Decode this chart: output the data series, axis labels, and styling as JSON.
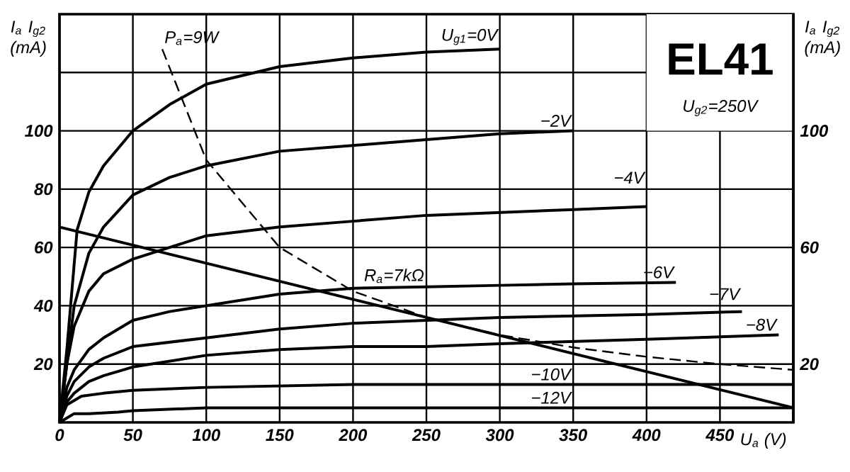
{
  "chart_data": {
    "type": "line",
    "title": "EL41",
    "subtitle": "U$_{g2}$=250V",
    "xlabel": "U$_{a}$ (V)",
    "ylabel": "I$_{a}$ I$_{g2}$ (mA)",
    "y2label": "I$_{a}$ I$_{g2}$ (mA)",
    "xlim": [
      0,
      500
    ],
    "ylim": [
      0,
      140
    ],
    "y2lim": [
      0,
      140
    ],
    "xticks": [
      0,
      50,
      100,
      150,
      200,
      250,
      300,
      350,
      400,
      450
    ],
    "yticks": [
      20,
      40,
      60,
      80,
      100,
      {
        "value": 120,
        "label": null
      }
    ],
    "y2ticks": [
      20,
      60,
      100
    ],
    "grid": true,
    "series": [
      {
        "color": "#000000",
        "line_style": "solid",
        "x": [
          0,
          5,
          12,
          20,
          30,
          50,
          75,
          100,
          150,
          200,
          250,
          300
        ],
        "values": [
          0,
          25,
          66,
          79,
          88,
          100,
          109,
          116,
          122,
          125,
          127,
          128
        ]
      },
      {
        "color": "#000000",
        "line_style": "solid",
        "x": [
          0,
          5,
          10,
          20,
          30,
          50,
          75,
          100,
          150,
          200,
          250,
          300,
          350
        ],
        "values": [
          0,
          20,
          40,
          58,
          67,
          78,
          84,
          88,
          93,
          95,
          97,
          99,
          100
        ]
      },
      {
        "color": "#000000",
        "line_style": "solid",
        "x": [
          0,
          5,
          10,
          20,
          30,
          50,
          75,
          100,
          150,
          200,
          250,
          300,
          350,
          400
        ],
        "values": [
          0,
          20,
          33,
          45,
          51,
          56,
          60,
          64,
          67,
          69,
          71,
          72,
          73,
          74
        ]
      },
      {
        "color": "#000000",
        "line_style": "solid",
        "x": [
          0,
          5,
          10,
          20,
          30,
          50,
          75,
          100,
          150,
          200,
          250,
          300,
          350,
          420
        ],
        "values": [
          0,
          12,
          18,
          25,
          29,
          35,
          38,
          40,
          44,
          46,
          46.5,
          47,
          47.5,
          48
        ]
      },
      {
        "color": "#000000",
        "line_style": "solid",
        "x": [
          0,
          5,
          10,
          20,
          30,
          50,
          100,
          150,
          200,
          250,
          300,
          400,
          465
        ],
        "values": [
          0,
          9,
          14,
          19,
          22,
          26,
          29,
          32,
          34,
          35,
          36,
          37,
          38
        ]
      },
      {
        "color": "#000000",
        "line_style": "solid",
        "x": [
          0,
          5,
          10,
          20,
          30,
          50,
          100,
          150,
          200,
          250,
          300,
          400,
          490
        ],
        "values": [
          0,
          7,
          10,
          14,
          16,
          19,
          23,
          25,
          26,
          26,
          27,
          28.5,
          30
        ]
      },
      {
        "color": "#000000",
        "line_style": "solid",
        "x": [
          0,
          5,
          15,
          30,
          50,
          100,
          200,
          300,
          400,
          500
        ],
        "values": [
          0,
          6,
          9,
          10,
          11,
          12,
          13,
          13,
          13,
          13
        ]
      },
      {
        "color": "#000000",
        "line_style": "solid",
        "x": [
          0,
          10,
          20,
          40,
          50,
          100,
          200,
          300,
          400,
          500
        ],
        "values": [
          0,
          3,
          3,
          3.5,
          4,
          5,
          5,
          5,
          5,
          5
        ]
      },
      {
        "color": "#000000",
        "line_style": "solid",
        "x": [
          0,
          250,
          500
        ],
        "values": [
          67,
          36,
          5
        ]
      },
      {
        "color": "#000000",
        "line_style": "dashed",
        "x": [
          70,
          100,
          150,
          200,
          250,
          300,
          350,
          400,
          450,
          500
        ],
        "values": [
          128,
          90,
          60,
          45,
          36,
          30,
          25.7,
          22.5,
          20,
          18
        ]
      }
    ],
    "annotations": [
      {
        "text": "U$_{g1}$=0V",
        "x": 300,
        "y": 128
      },
      {
        "text": "−2V",
        "x": 350,
        "y": 100
      },
      {
        "text": "−4V",
        "x": 400,
        "y": 74
      },
      {
        "text": "−6V",
        "x": 420,
        "y": 48
      },
      {
        "text": "−7V",
        "x": 465,
        "y": 38
      },
      {
        "text": "−8V",
        "x": 490,
        "y": 30
      },
      {
        "text": "−10V",
        "x": 350,
        "y": 13
      },
      {
        "text": "−12V",
        "x": 350,
        "y": 5
      },
      {
        "text": "P$_{a}$=9W",
        "x": 70,
        "y": 128
      },
      {
        "text": "R$_{a}$=7kΩ",
        "x": 250,
        "y": 36
      }
    ]
  }
}
